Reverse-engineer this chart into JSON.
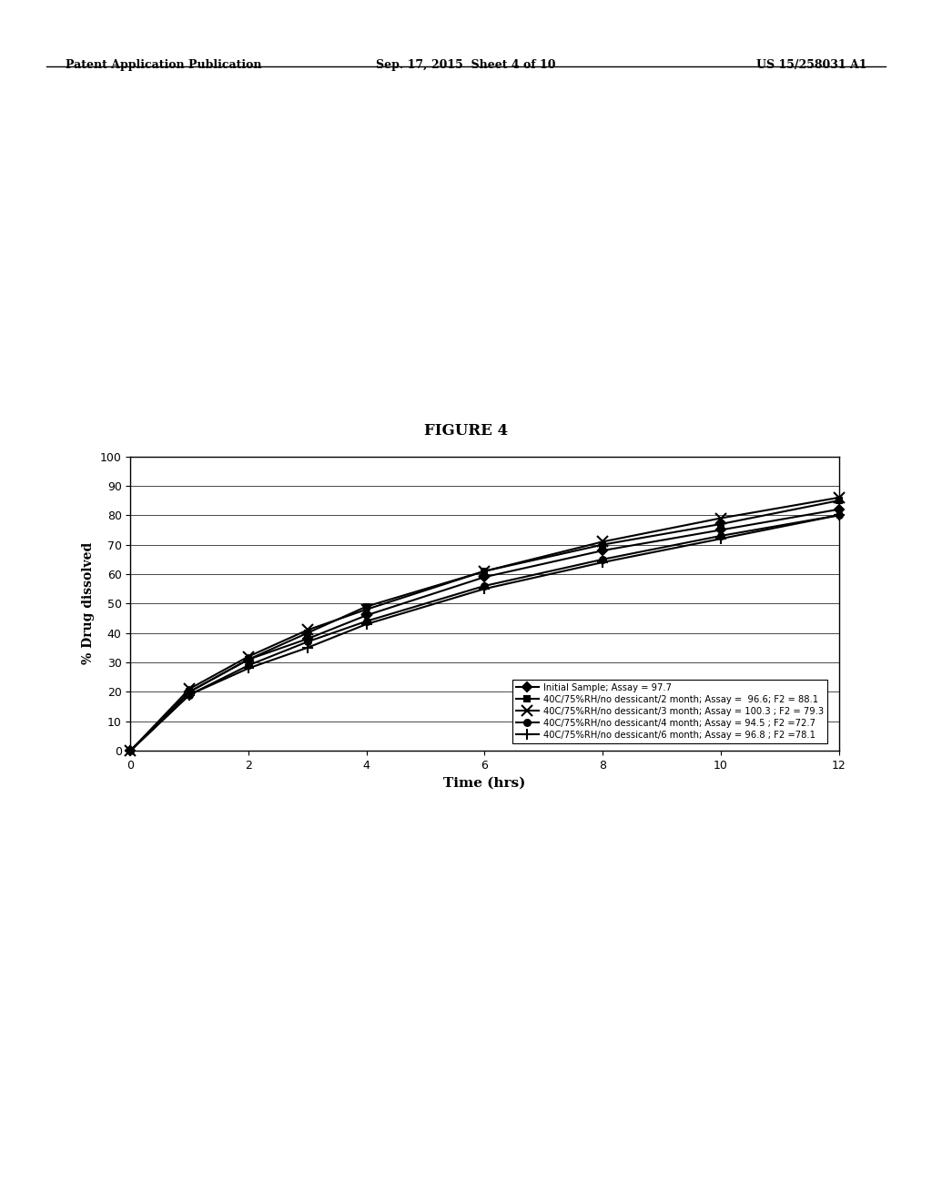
{
  "title": "FIGURE 4",
  "xlabel": "Time (hrs)",
  "ylabel": "% Drug dissolved",
  "xlim": [
    0,
    12
  ],
  "ylim": [
    0,
    100
  ],
  "xticks": [
    0,
    2,
    4,
    6,
    8,
    10,
    12
  ],
  "yticks": [
    0,
    10,
    20,
    30,
    40,
    50,
    60,
    70,
    80,
    90,
    100
  ],
  "series": [
    {
      "label": "Initial Sample; Assay = 97.7",
      "x": [
        0,
        1,
        2,
        3,
        4,
        6,
        8,
        10,
        12
      ],
      "y": [
        0,
        20,
        31,
        38,
        46,
        59,
        68,
        75,
        82
      ],
      "marker": "D",
      "color": "#000000",
      "linewidth": 1.5,
      "markersize": 5
    },
    {
      "label": "40C/75%RH/no dessicant/2 month; Assay =  96.6; F2 = 88.1",
      "x": [
        0,
        1,
        2,
        3,
        4,
        6,
        8,
        10,
        12
      ],
      "y": [
        0,
        20,
        31,
        40,
        49,
        61,
        70,
        77,
        85
      ],
      "marker": "s",
      "color": "#000000",
      "linewidth": 1.5,
      "markersize": 5
    },
    {
      "label": "40C/75%RH/no dessicant/3 month; Assay = 100.3 ; F2 = 79.3",
      "x": [
        0,
        1,
        2,
        3,
        4,
        6,
        8,
        10,
        12
      ],
      "y": [
        0,
        21,
        32,
        41,
        48,
        61,
        71,
        79,
        86
      ],
      "marker": "x",
      "color": "#000000",
      "linewidth": 1.5,
      "markersize": 8
    },
    {
      "label": "40C/75%RH/no dessicant/4 month; Assay = 94.5 ; F2 =72.7",
      "x": [
        0,
        1,
        2,
        3,
        4,
        6,
        8,
        10,
        12
      ],
      "y": [
        0,
        19,
        29,
        37,
        44,
        56,
        65,
        73,
        80
      ],
      "marker": "o",
      "color": "#000000",
      "linewidth": 1.5,
      "markersize": 5
    },
    {
      "label": "40C/75%RH/no dessicant/6 month; Assay = 96.8 ; F2 =78.1",
      "x": [
        0,
        1,
        2,
        3,
        4,
        6,
        8,
        10,
        12
      ],
      "y": [
        0,
        19,
        28,
        35,
        43,
        55,
        64,
        72,
        80
      ],
      "marker": "+",
      "color": "#000000",
      "linewidth": 1.5,
      "markersize": 9
    }
  ],
  "bg_color": "#ffffff",
  "plot_bg_color": "#ffffff",
  "header_left": "Patent Application Publication",
  "header_center": "Sep. 17, 2015  Sheet 4 of 10",
  "header_right": "US 15/258031 A1"
}
